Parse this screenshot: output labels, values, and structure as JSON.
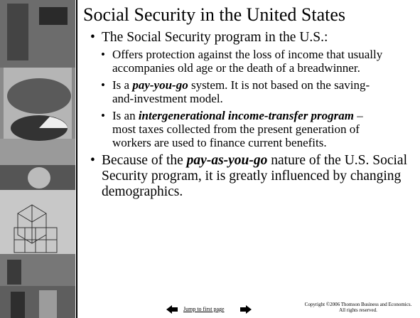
{
  "title": "Social Security in the United States",
  "bullets": [
    {
      "parts": [
        {
          "text": "The Social Security program in the U.S.:"
        }
      ],
      "subbullets": [
        {
          "parts": [
            {
              "text": "Offers protection against the loss of income that usually accompanies old age or the death of a breadwinner."
            }
          ]
        },
        {
          "parts": [
            {
              "text": "Is a "
            },
            {
              "text": "pay-you-go",
              "bold_italic": true
            },
            {
              "text": " system. It is not based on the saving-and-investment model."
            }
          ]
        },
        {
          "parts": [
            {
              "text": "Is an "
            },
            {
              "text": "intergenerational income-transfer program",
              "bold_italic": true
            },
            {
              "text": " – most taxes collected from the present generation of workers are used to finance current benefits."
            }
          ]
        }
      ]
    },
    {
      "parts": [
        {
          "text": "Because of the "
        },
        {
          "text": "pay-as-you-go",
          "bold_italic": true
        },
        {
          "text": " nature of the U.S. Social Security program, it is greatly influenced by changing demographics."
        }
      ],
      "subbullets": []
    }
  ],
  "footer": {
    "link": "Jump to first page",
    "copyright": "Copyright ©2006  Thomson Business and Economics. All rights reserved."
  }
}
